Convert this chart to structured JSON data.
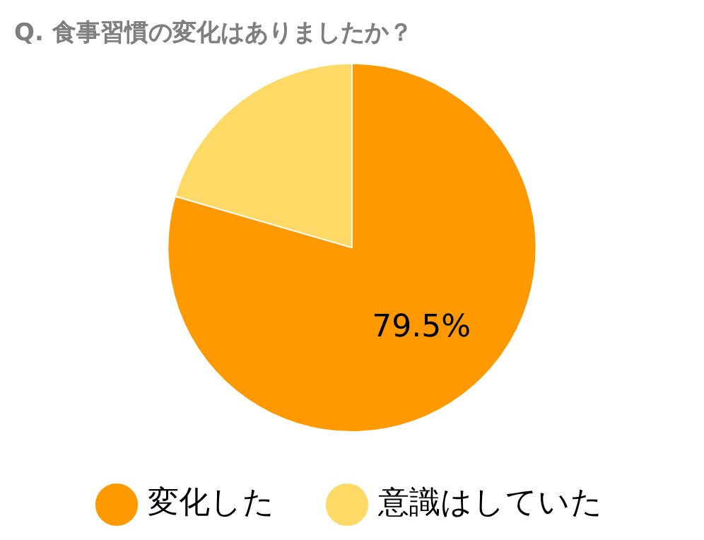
{
  "chart_data": {
    "type": "pie",
    "title": "Q. 食事習慣の変化はありましたか？",
    "categories": [
      "変化した",
      "意識はしていた"
    ],
    "values": [
      79.5,
      20.5
    ],
    "colors": [
      "#ff9900",
      "#ffd966"
    ],
    "value_labels": [
      "79.5%",
      null
    ],
    "legend": "bottom"
  }
}
